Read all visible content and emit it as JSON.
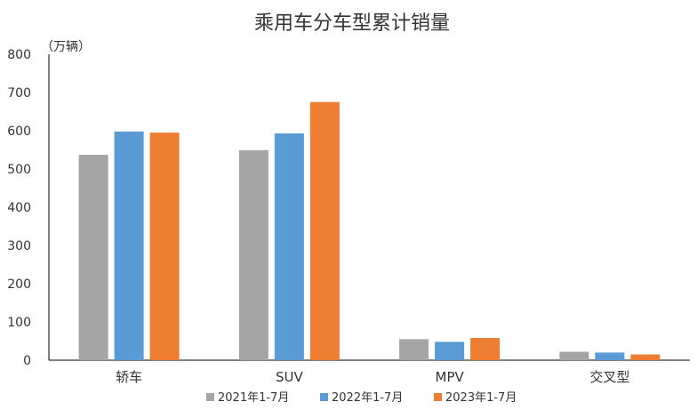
{
  "chart_data": {
    "type": "bar",
    "title": "乘用车分车型累计销量",
    "ylabel": "（万辆）",
    "xlabel": "",
    "ylim": [
      0,
      800
    ],
    "yticks": [
      0,
      100,
      200,
      300,
      400,
      500,
      600,
      700,
      800
    ],
    "grid": false,
    "legend_position": "bottom",
    "categories": [
      "轿车",
      "SUV",
      "MPV",
      "交叉型"
    ],
    "series": [
      {
        "name": "2021年1-7月",
        "color": "#a5a5a5",
        "values": [
          537,
          549,
          55,
          22
        ]
      },
      {
        "name": "2022年1-7月",
        "color": "#5b9bd5",
        "values": [
          598,
          593,
          48,
          20
        ]
      },
      {
        "name": "2023年1-7月",
        "color": "#ed7d31",
        "values": [
          595,
          675,
          58,
          15
        ]
      }
    ]
  }
}
